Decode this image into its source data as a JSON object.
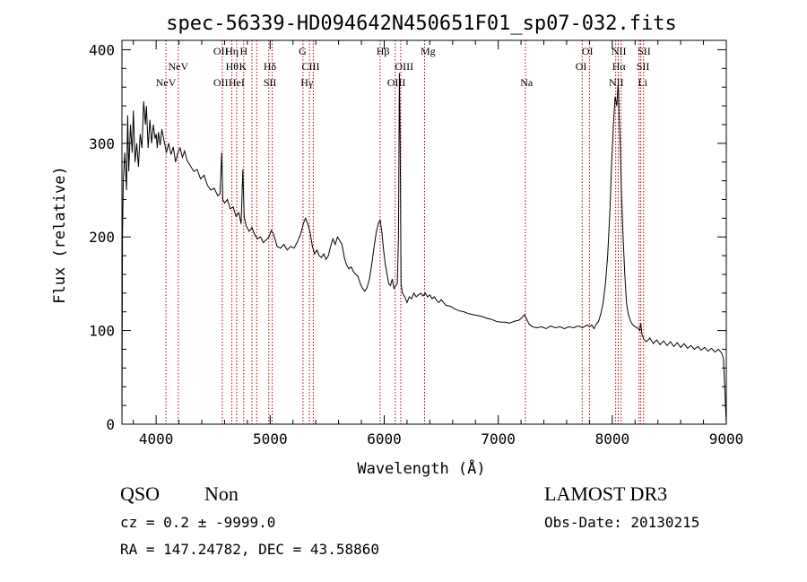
{
  "chart_data": {
    "type": "line",
    "title": "spec-56339-HD094642N450651F01_sp07-032.fits",
    "xlabel": "Wavelength (Å)",
    "ylabel": "Flux (relative)",
    "xlim": [
      3700,
      9000
    ],
    "ylim": [
      0,
      410
    ],
    "xticks": [
      4000,
      5000,
      6000,
      7000,
      8000,
      9000
    ],
    "yticks": [
      0,
      100,
      200,
      300,
      400
    ],
    "grid": false,
    "series": [
      {
        "line_color": "#000000",
        "points": [
          [
            3700,
            0
          ],
          [
            3705,
            200
          ],
          [
            3712,
            260
          ],
          [
            3725,
            290
          ],
          [
            3740,
            250
          ],
          [
            3750,
            330
          ],
          [
            3760,
            270
          ],
          [
            3775,
            320
          ],
          [
            3790,
            290
          ],
          [
            3800,
            335
          ],
          [
            3815,
            280
          ],
          [
            3830,
            300
          ],
          [
            3845,
            275
          ],
          [
            3860,
            310
          ],
          [
            3875,
            295
          ],
          [
            3890,
            345
          ],
          [
            3905,
            320
          ],
          [
            3915,
            340
          ],
          [
            3930,
            295
          ],
          [
            3945,
            325
          ],
          [
            3960,
            300
          ],
          [
            3975,
            320
          ],
          [
            3990,
            305
          ],
          [
            4000,
            310
          ],
          [
            4010,
            295
          ],
          [
            4020,
            312
          ],
          [
            4035,
            298
          ],
          [
            4050,
            315
          ],
          [
            4070,
            302
          ],
          [
            4090,
            290
          ],
          [
            4110,
            300
          ],
          [
            4130,
            288
          ],
          [
            4150,
            296
          ],
          [
            4170,
            280
          ],
          [
            4190,
            290
          ],
          [
            4210,
            295
          ],
          [
            4230,
            285
          ],
          [
            4250,
            292
          ],
          [
            4270,
            282
          ],
          [
            4300,
            276
          ],
          [
            4330,
            270
          ],
          [
            4360,
            272
          ],
          [
            4390,
            262
          ],
          [
            4420,
            266
          ],
          [
            4450,
            255
          ],
          [
            4480,
            250
          ],
          [
            4510,
            252
          ],
          [
            4540,
            244
          ],
          [
            4560,
            246
          ],
          [
            4575,
            290
          ],
          [
            4585,
            240
          ],
          [
            4600,
            236
          ],
          [
            4625,
            240
          ],
          [
            4650,
            230
          ],
          [
            4675,
            232
          ],
          [
            4700,
            222
          ],
          [
            4725,
            226
          ],
          [
            4745,
            214
          ],
          [
            4760,
            272
          ],
          [
            4772,
            222
          ],
          [
            4790,
            212
          ],
          [
            4815,
            206
          ],
          [
            4840,
            210
          ],
          [
            4865,
            202
          ],
          [
            4890,
            198
          ],
          [
            4915,
            200
          ],
          [
            4940,
            194
          ],
          [
            4965,
            197
          ],
          [
            4990,
            200
          ],
          [
            5010,
            207
          ],
          [
            5030,
            203
          ],
          [
            5060,
            190
          ],
          [
            5090,
            188
          ],
          [
            5120,
            192
          ],
          [
            5150,
            186
          ],
          [
            5180,
            190
          ],
          [
            5210,
            188
          ],
          [
            5240,
            195
          ],
          [
            5270,
            204
          ],
          [
            5290,
            214
          ],
          [
            5310,
            220
          ],
          [
            5330,
            214
          ],
          [
            5350,
            205
          ],
          [
            5370,
            190
          ],
          [
            5390,
            182
          ],
          [
            5410,
            186
          ],
          [
            5430,
            180
          ],
          [
            5450,
            178
          ],
          [
            5470,
            182
          ],
          [
            5490,
            176
          ],
          [
            5510,
            180
          ],
          [
            5530,
            190
          ],
          [
            5550,
            198
          ],
          [
            5570,
            192
          ],
          [
            5590,
            200
          ],
          [
            5610,
            196
          ],
          [
            5630,
            192
          ],
          [
            5650,
            178
          ],
          [
            5670,
            170
          ],
          [
            5690,
            166
          ],
          [
            5710,
            168
          ],
          [
            5730,
            163
          ],
          [
            5750,
            160
          ],
          [
            5770,
            158
          ],
          [
            5790,
            150
          ],
          [
            5810,
            145
          ],
          [
            5830,
            142
          ],
          [
            5850,
            146
          ],
          [
            5870,
            155
          ],
          [
            5890,
            170
          ],
          [
            5910,
            188
          ],
          [
            5930,
            205
          ],
          [
            5950,
            215
          ],
          [
            5965,
            218
          ],
          [
            5980,
            205
          ],
          [
            5995,
            185
          ],
          [
            6010,
            170
          ],
          [
            6025,
            160
          ],
          [
            6040,
            150
          ],
          [
            6055,
            148
          ],
          [
            6070,
            155
          ],
          [
            6085,
            145
          ],
          [
            6100,
            148
          ],
          [
            6115,
            150
          ],
          [
            6125,
            200
          ],
          [
            6133,
            375
          ],
          [
            6140,
            300
          ],
          [
            6148,
            150
          ],
          [
            6160,
            140
          ],
          [
            6180,
            136
          ],
          [
            6200,
            130
          ],
          [
            6220,
            136
          ],
          [
            6240,
            134
          ],
          [
            6260,
            140
          ],
          [
            6280,
            136
          ],
          [
            6300,
            138
          ],
          [
            6320,
            140
          ],
          [
            6340,
            137
          ],
          [
            6360,
            140
          ],
          [
            6380,
            136
          ],
          [
            6400,
            138
          ],
          [
            6420,
            134
          ],
          [
            6440,
            136
          ],
          [
            6460,
            132
          ],
          [
            6480,
            130
          ],
          [
            6500,
            133
          ],
          [
            6540,
            127
          ],
          [
            6580,
            126
          ],
          [
            6620,
            123
          ],
          [
            6660,
            121
          ],
          [
            6700,
            120
          ],
          [
            6740,
            118
          ],
          [
            6780,
            117
          ],
          [
            6820,
            116
          ],
          [
            6860,
            115
          ],
          [
            6900,
            113
          ],
          [
            6940,
            112
          ],
          [
            6980,
            110
          ],
          [
            7020,
            109
          ],
          [
            7060,
            109
          ],
          [
            7100,
            108
          ],
          [
            7140,
            110
          ],
          [
            7180,
            111
          ],
          [
            7210,
            114
          ],
          [
            7230,
            117
          ],
          [
            7250,
            112
          ],
          [
            7270,
            107
          ],
          [
            7300,
            104
          ],
          [
            7340,
            103
          ],
          [
            7380,
            104
          ],
          [
            7420,
            102
          ],
          [
            7460,
            105
          ],
          [
            7500,
            103
          ],
          [
            7540,
            104
          ],
          [
            7580,
            102
          ],
          [
            7620,
            104
          ],
          [
            7660,
            103
          ],
          [
            7700,
            105
          ],
          [
            7740,
            103
          ],
          [
            7780,
            106
          ],
          [
            7800,
            104
          ],
          [
            7820,
            106
          ],
          [
            7840,
            102
          ],
          [
            7860,
            107
          ],
          [
            7880,
            110
          ],
          [
            7900,
            118
          ],
          [
            7920,
            130
          ],
          [
            7940,
            150
          ],
          [
            7960,
            180
          ],
          [
            7980,
            230
          ],
          [
            7995,
            280
          ],
          [
            8010,
            320
          ],
          [
            8025,
            350
          ],
          [
            8040,
            340
          ],
          [
            8050,
            362
          ],
          [
            8055,
            358
          ],
          [
            8060,
            330
          ],
          [
            8070,
            300
          ],
          [
            8080,
            250
          ],
          [
            8095,
            200
          ],
          [
            8110,
            160
          ],
          [
            8125,
            130
          ],
          [
            8140,
            118
          ],
          [
            8160,
            110
          ],
          [
            8180,
            106
          ],
          [
            8200,
            104
          ],
          [
            8220,
            103
          ],
          [
            8240,
            100
          ],
          [
            8250,
            108
          ],
          [
            8260,
            96
          ],
          [
            8280,
            90
          ],
          [
            8300,
            88
          ],
          [
            8330,
            92
          ],
          [
            8360,
            86
          ],
          [
            8390,
            90
          ],
          [
            8420,
            85
          ],
          [
            8450,
            89
          ],
          [
            8480,
            84
          ],
          [
            8510,
            88
          ],
          [
            8540,
            83
          ],
          [
            8570,
            87
          ],
          [
            8600,
            82
          ],
          [
            8630,
            86
          ],
          [
            8660,
            81
          ],
          [
            8690,
            84
          ],
          [
            8720,
            80
          ],
          [
            8750,
            83
          ],
          [
            8780,
            79
          ],
          [
            8810,
            82
          ],
          [
            8840,
            78
          ],
          [
            8870,
            81
          ],
          [
            8900,
            77
          ],
          [
            8930,
            80
          ],
          [
            8960,
            76
          ],
          [
            8975,
            70
          ],
          [
            8990,
            30
          ],
          [
            9000,
            0
          ]
        ]
      }
    ],
    "emission_lines": [
      {
        "label": "NeV",
        "wavelength": 4086,
        "row": 3
      },
      {
        "label": "NeV",
        "wavelength": 4194,
        "row": 2
      },
      {
        "label": "OII",
        "wavelength": 4567,
        "row": 1
      },
      {
        "label": "Hη",
        "wavelength": 4664,
        "row": 1
      },
      {
        "label": "H",
        "wavelength": 4768,
        "row": 1
      },
      {
        "label": "Hθ",
        "wavelength": 4666,
        "row": 2
      },
      {
        "label": "K",
        "wavelength": 4760,
        "row": 2
      },
      {
        "label": "OII",
        "wavelength": 4567,
        "row": 3
      },
      {
        "label": "HeI",
        "wavelength": 4706,
        "row": 3
      },
      {
        "label": "Hδ",
        "wavelength": 4998,
        "row": 2
      },
      {
        "label": "SII",
        "wavelength": 4998,
        "row": 3
      },
      {
        "label": "G",
        "wavelength": 5284,
        "row": 1
      },
      {
        "label": "CIII",
        "wavelength": 5355,
        "row": 2
      },
      {
        "label": "Hγ",
        "wavelength": 5322,
        "row": 3
      },
      {
        "label": "Hβ",
        "wavelength": 5989,
        "row": 1
      },
      {
        "label": "Mg",
        "wavelength": 6384,
        "row": 1
      },
      {
        "label": "OIII",
        "wavelength": 6175,
        "row": 2
      },
      {
        "label": "OIII",
        "wavelength": 6107,
        "row": 3
      },
      {
        "label": "Na",
        "wavelength": 7248,
        "row": 3
      },
      {
        "label": "OI",
        "wavelength": 7783,
        "row": 1
      },
      {
        "label": "OI",
        "wavelength": 7727,
        "row": 2
      },
      {
        "label": "NII",
        "wavelength": 8058,
        "row": 1
      },
      {
        "label": "SII",
        "wavelength": 8280,
        "row": 1
      },
      {
        "label": "Hα",
        "wavelength": 8058,
        "row": 2
      },
      {
        "label": "SII",
        "wavelength": 8269,
        "row": 2
      },
      {
        "label": "NII",
        "wavelength": 8035,
        "row": 3
      },
      {
        "label": "Li",
        "wavelength": 8267,
        "row": 3
      }
    ],
    "vlines": [
      4086,
      4194,
      4580,
      4664,
      4706,
      4768,
      4840,
      4882,
      4988,
      5018,
      5288,
      5344,
      5378,
      5964,
      6096,
      6145,
      6354,
      7238,
      7736,
      7800,
      8030,
      8052,
      8078,
      8235,
      8250,
      8275
    ],
    "vline_color": "#b00000"
  },
  "footer": {
    "class_label": "QSO",
    "subclass_label": "Non",
    "cz_text": "cz = 0.2 ± -9999.0",
    "coords_text": "RA = 147.24782, DEC =  43.58860",
    "survey_label": "LAMOST DR3",
    "obs_date_text": "Obs-Date: 20130215"
  }
}
